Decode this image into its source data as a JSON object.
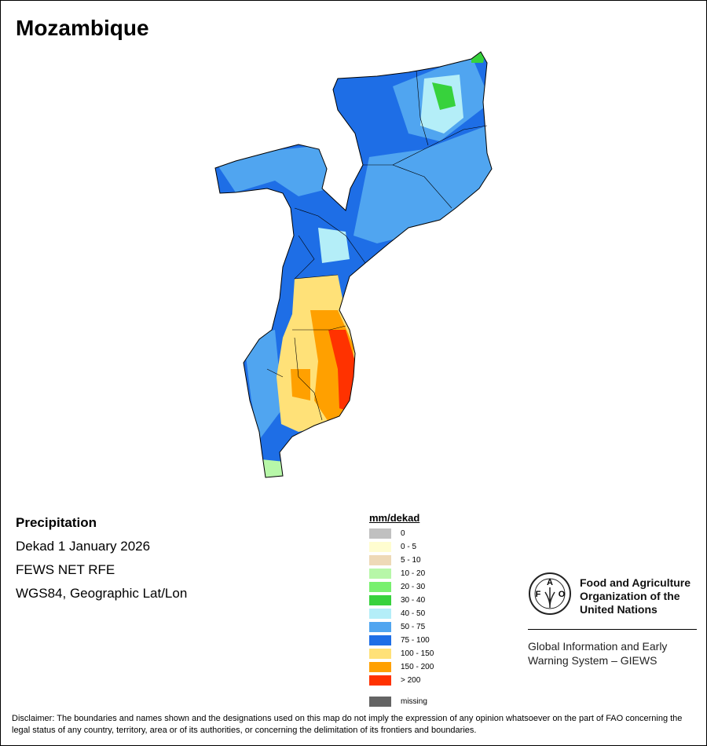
{
  "title": "Mozambique",
  "info": {
    "variable": "Precipitation",
    "period": "Dekad 1 January 2026",
    "source": "FEWS NET RFE",
    "projection": "WGS84, Geographic Lat/Lon"
  },
  "legend": {
    "title": "mm/dekad",
    "items": [
      {
        "label": "0",
        "color": "#c0c0c0"
      },
      {
        "label": "0 - 5",
        "color": "#fffdd0"
      },
      {
        "label": "5 - 10",
        "color": "#eed9b7"
      },
      {
        "label": "10 - 20",
        "color": "#b7f7a8"
      },
      {
        "label": "20 - 30",
        "color": "#78f06e"
      },
      {
        "label": "30 - 40",
        "color": "#37d23c"
      },
      {
        "label": "40 - 50",
        "color": "#b4eef8"
      },
      {
        "label": "50 - 75",
        "color": "#50a5f0"
      },
      {
        "label": "75 - 100",
        "color": "#1e6ee6"
      },
      {
        "label": "100 - 150",
        "color": "#ffe178"
      },
      {
        "label": "150 - 200",
        "color": "#ffa000"
      },
      {
        "label": "> 200",
        "color": "#ff3200"
      }
    ],
    "missing": {
      "label": "missing",
      "color": "#646464"
    }
  },
  "fao": {
    "name": "Food and Agriculture Organization of the United Nations",
    "logo_text": "FAO FIAT PANIS",
    "giews": "Global Information and Early Warning System – GIEWS"
  },
  "disclaimer": "Disclaimer: The boundaries and names shown and the designations used on this map do not imply the expression of any opinion whatsoever on the part of FAO concerning the legal status of any country, territory, area or of its authorities, or concerning the delimitation of its frontiers and boundaries."
}
